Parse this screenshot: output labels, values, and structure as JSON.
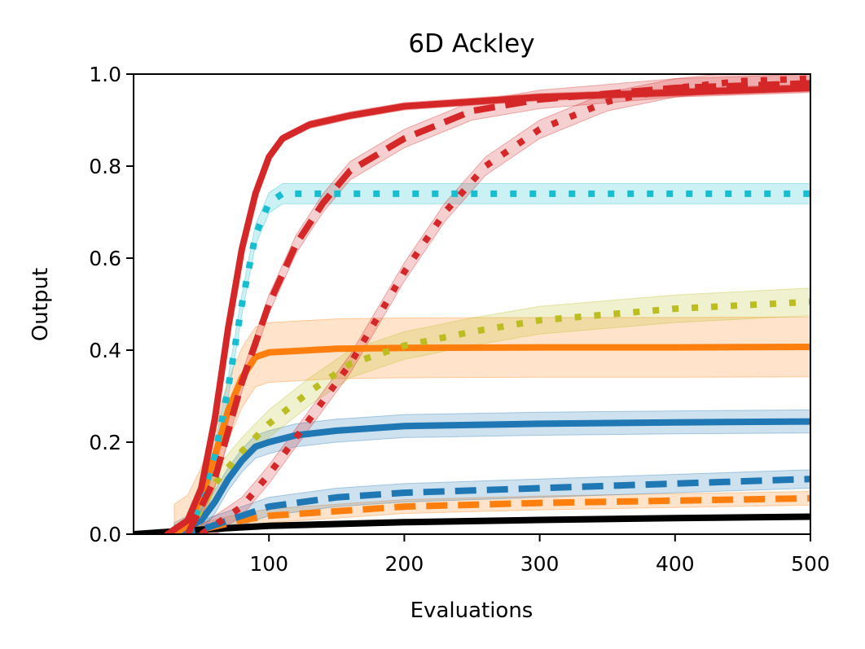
{
  "chart_data": {
    "type": "line",
    "title": "6D Ackley",
    "xlabel": "Evaluations",
    "ylabel": "Output",
    "xlim": [
      0,
      500
    ],
    "ylim": [
      0.0,
      1.0
    ],
    "xticks": [
      100,
      200,
      300,
      400,
      500
    ],
    "xtick_labels": [
      "100",
      "200",
      "300",
      "400",
      "500"
    ],
    "yticks": [
      0.0,
      0.2,
      0.4,
      0.6,
      0.8,
      1.0
    ],
    "ytick_labels": [
      "0.0",
      "0.2",
      "0.4",
      "0.6",
      "0.8",
      "1.0"
    ],
    "grid": false,
    "series": [
      {
        "name": "black-solid",
        "color": "#000000",
        "style": "solid",
        "band": 0.005,
        "x": [
          0,
          50,
          100,
          200,
          300,
          400,
          500
        ],
        "y": [
          0.0,
          0.01,
          0.018,
          0.026,
          0.031,
          0.035,
          0.038
        ]
      },
      {
        "name": "orange-dashed",
        "color": "#ff7f0e",
        "style": "dashed",
        "band": 0.015,
        "x": [
          30,
          50,
          80,
          100,
          150,
          200,
          300,
          400,
          500
        ],
        "y": [
          0.0,
          0.01,
          0.03,
          0.04,
          0.05,
          0.06,
          0.068,
          0.073,
          0.078
        ]
      },
      {
        "name": "blue-dashed",
        "color": "#1f77b4",
        "style": "dashed",
        "band": 0.02,
        "x": [
          30,
          50,
          80,
          100,
          150,
          200,
          300,
          400,
          500
        ],
        "y": [
          0.0,
          0.01,
          0.04,
          0.06,
          0.08,
          0.09,
          0.1,
          0.11,
          0.12
        ]
      },
      {
        "name": "blue-solid",
        "color": "#1f77b4",
        "style": "solid",
        "band": 0.025,
        "x": [
          30,
          50,
          60,
          70,
          80,
          90,
          100,
          120,
          150,
          200,
          300,
          400,
          500
        ],
        "y": [
          0.0,
          0.03,
          0.07,
          0.12,
          0.16,
          0.19,
          0.2,
          0.215,
          0.225,
          0.235,
          0.24,
          0.243,
          0.245
        ]
      },
      {
        "name": "orange-solid",
        "color": "#ff7f0e",
        "style": "solid",
        "band": 0.065,
        "x": [
          30,
          40,
          50,
          60,
          70,
          80,
          90,
          100,
          150,
          200,
          300,
          400,
          500
        ],
        "y": [
          0.0,
          0.02,
          0.08,
          0.17,
          0.27,
          0.34,
          0.385,
          0.395,
          0.403,
          0.405,
          0.406,
          0.406,
          0.407
        ]
      },
      {
        "name": "olive-dotted",
        "color": "#bcbd22",
        "style": "dotted",
        "band": 0.03,
        "x": [
          40,
          60,
          80,
          100,
          130,
          160,
          200,
          250,
          300,
          400,
          500
        ],
        "y": [
          0.0,
          0.11,
          0.18,
          0.24,
          0.31,
          0.37,
          0.41,
          0.44,
          0.465,
          0.49,
          0.505
        ]
      },
      {
        "name": "cyan-dotted",
        "color": "#17becf",
        "style": "dotted",
        "band": 0.022,
        "x": [
          40,
          50,
          60,
          70,
          80,
          90,
          100,
          110,
          130,
          200,
          300,
          400,
          500
        ],
        "y": [
          0.0,
          0.07,
          0.17,
          0.32,
          0.5,
          0.65,
          0.72,
          0.74,
          0.74,
          0.74,
          0.74,
          0.74,
          0.74
        ]
      },
      {
        "name": "red-dotted",
        "color": "#d62728",
        "style": "dotted",
        "band": 0.02,
        "x": [
          50,
          80,
          100,
          130,
          160,
          180,
          200,
          230,
          260,
          300,
          350,
          400,
          450,
          500
        ],
        "y": [
          0.0,
          0.06,
          0.13,
          0.25,
          0.37,
          0.47,
          0.57,
          0.7,
          0.8,
          0.88,
          0.94,
          0.97,
          0.985,
          0.99
        ]
      },
      {
        "name": "red-dashed",
        "color": "#d62728",
        "style": "dashed",
        "band": 0.02,
        "x": [
          40,
          60,
          80,
          100,
          120,
          140,
          160,
          200,
          250,
          300,
          400,
          500
        ],
        "y": [
          0.0,
          0.12,
          0.33,
          0.5,
          0.63,
          0.72,
          0.79,
          0.86,
          0.92,
          0.945,
          0.97,
          0.98
        ]
      },
      {
        "name": "red-solid",
        "color": "#d62728",
        "style": "solid",
        "band": 0.008,
        "x": [
          25,
          40,
          50,
          60,
          70,
          80,
          90,
          100,
          110,
          130,
          160,
          200,
          300,
          400,
          500
        ],
        "y": [
          0.0,
          0.03,
          0.1,
          0.25,
          0.45,
          0.62,
          0.74,
          0.82,
          0.86,
          0.89,
          0.91,
          0.93,
          0.95,
          0.96,
          0.97
        ]
      }
    ]
  }
}
